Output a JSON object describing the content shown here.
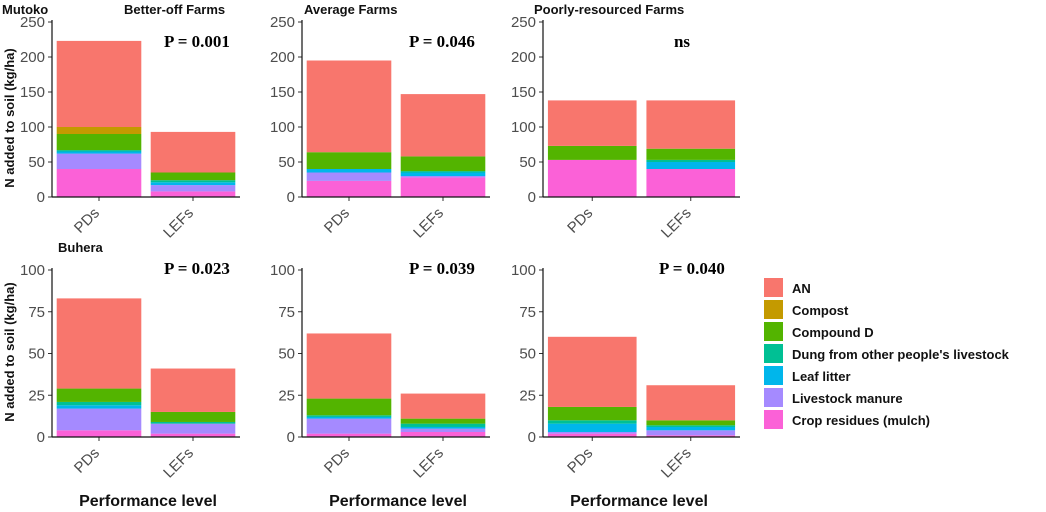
{
  "ylabel": "N added to soil (kg/ha)",
  "xlabel": "Performance level",
  "legend": [
    {
      "name": "AN",
      "color": "#F8766D"
    },
    {
      "name": "Compost",
      "color": "#C49A00"
    },
    {
      "name": "Compound D",
      "color": "#53B400"
    },
    {
      "name": "Dung from other people's livestock",
      "color": "#00C094"
    },
    {
      "name": "Leaf litter",
      "color": "#00B6EB"
    },
    {
      "name": "Livestock manure",
      "color": "#A58AFF"
    },
    {
      "name": "Crop residues (mulch)",
      "color": "#FB61D7"
    }
  ],
  "chart_data": [
    {
      "type": "bar",
      "stacked": true,
      "row_label": "Mutoko",
      "panel_title": "Better-off Farms",
      "annotation": "P = 0.001",
      "categories": [
        "PDs",
        "LEFs"
      ],
      "ylim": [
        0,
        250
      ],
      "yticks": [
        0,
        50,
        100,
        150,
        200,
        250
      ],
      "series": [
        {
          "name": "Crop residues (mulch)",
          "values": [
            40,
            8
          ]
        },
        {
          "name": "Livestock manure",
          "values": [
            22,
            9
          ]
        },
        {
          "name": "Leaf litter",
          "values": [
            3,
            4
          ]
        },
        {
          "name": "Dung from other people's livestock",
          "values": [
            2,
            3
          ]
        },
        {
          "name": "Compound D",
          "values": [
            23,
            11
          ]
        },
        {
          "name": "Compost",
          "values": [
            10,
            0
          ]
        },
        {
          "name": "AN",
          "values": [
            123,
            58
          ]
        }
      ]
    },
    {
      "type": "bar",
      "stacked": true,
      "row_label": "",
      "panel_title": "Average Farms",
      "annotation": "P = 0.046",
      "categories": [
        "PDs",
        "LEFs"
      ],
      "ylim": [
        0,
        250
      ],
      "yticks": [
        0,
        50,
        100,
        150,
        200,
        250
      ],
      "series": [
        {
          "name": "Crop residues (mulch)",
          "values": [
            23,
            28
          ]
        },
        {
          "name": "Livestock manure",
          "values": [
            12,
            2
          ]
        },
        {
          "name": "Leaf litter",
          "values": [
            5,
            5
          ]
        },
        {
          "name": "Dung from other people's livestock",
          "values": [
            0,
            2
          ]
        },
        {
          "name": "Compound D",
          "values": [
            24,
            21
          ]
        },
        {
          "name": "Compost",
          "values": [
            0,
            0
          ]
        },
        {
          "name": "AN",
          "values": [
            131,
            89
          ]
        }
      ]
    },
    {
      "type": "bar",
      "stacked": true,
      "row_label": "",
      "panel_title": "Poorly-resourced Farms",
      "annotation": "ns",
      "categories": [
        "PDs",
        "LEFs"
      ],
      "ylim": [
        0,
        250
      ],
      "yticks": [
        0,
        50,
        100,
        150,
        200,
        250
      ],
      "series": [
        {
          "name": "Crop residues (mulch)",
          "values": [
            53,
            40
          ]
        },
        {
          "name": "Livestock manure",
          "values": [
            0,
            0
          ]
        },
        {
          "name": "Leaf litter",
          "values": [
            0,
            10
          ]
        },
        {
          "name": "Dung from other people's livestock",
          "values": [
            0,
            3
          ]
        },
        {
          "name": "Compound D",
          "values": [
            20,
            16
          ]
        },
        {
          "name": "Compost",
          "values": [
            0,
            0
          ]
        },
        {
          "name": "AN",
          "values": [
            65,
            69
          ]
        }
      ]
    },
    {
      "type": "bar",
      "stacked": true,
      "row_label": "Buhera",
      "panel_title": "",
      "annotation": "P = 0.023",
      "categories": [
        "PDs",
        "LEFs"
      ],
      "ylim": [
        0,
        100
      ],
      "yticks": [
        0,
        25,
        50,
        75,
        100
      ],
      "series": [
        {
          "name": "Crop residues (mulch)",
          "values": [
            4,
            2
          ]
        },
        {
          "name": "Livestock manure",
          "values": [
            13,
            6
          ]
        },
        {
          "name": "Leaf litter",
          "values": [
            2,
            0
          ]
        },
        {
          "name": "Dung from other people's livestock",
          "values": [
            2,
            1
          ]
        },
        {
          "name": "Compound D",
          "values": [
            8,
            6
          ]
        },
        {
          "name": "Compost",
          "values": [
            0,
            0
          ]
        },
        {
          "name": "AN",
          "values": [
            54,
            26
          ]
        }
      ]
    },
    {
      "type": "bar",
      "stacked": true,
      "row_label": "",
      "panel_title": "",
      "annotation": "P = 0.039",
      "categories": [
        "PDs",
        "LEFs"
      ],
      "ylim": [
        0,
        100
      ],
      "yticks": [
        0,
        25,
        50,
        75,
        100
      ],
      "series": [
        {
          "name": "Crop residues (mulch)",
          "values": [
            2,
            3
          ]
        },
        {
          "name": "Livestock manure",
          "values": [
            9,
            2
          ]
        },
        {
          "name": "Leaf litter",
          "values": [
            1,
            1
          ]
        },
        {
          "name": "Dung from other people's livestock",
          "values": [
            1,
            2
          ]
        },
        {
          "name": "Compound D",
          "values": [
            10,
            3
          ]
        },
        {
          "name": "Compost",
          "values": [
            0,
            0
          ]
        },
        {
          "name": "AN",
          "values": [
            39,
            15
          ]
        }
      ]
    },
    {
      "type": "bar",
      "stacked": true,
      "row_label": "",
      "panel_title": "",
      "annotation": "P = 0.040",
      "categories": [
        "PDs",
        "LEFs"
      ],
      "ylim": [
        0,
        100
      ],
      "yticks": [
        0,
        25,
        50,
        75,
        100
      ],
      "series": [
        {
          "name": "Crop residues (mulch)",
          "values": [
            2,
            1
          ]
        },
        {
          "name": "Livestock manure",
          "values": [
            1,
            3
          ]
        },
        {
          "name": "Leaf litter",
          "values": [
            5,
            2
          ]
        },
        {
          "name": "Dung from other people's livestock",
          "values": [
            2,
            1
          ]
        },
        {
          "name": "Compound D",
          "values": [
            8,
            3
          ]
        },
        {
          "name": "Compost",
          "values": [
            0,
            0
          ]
        },
        {
          "name": "AN",
          "values": [
            42,
            21
          ]
        }
      ]
    }
  ]
}
